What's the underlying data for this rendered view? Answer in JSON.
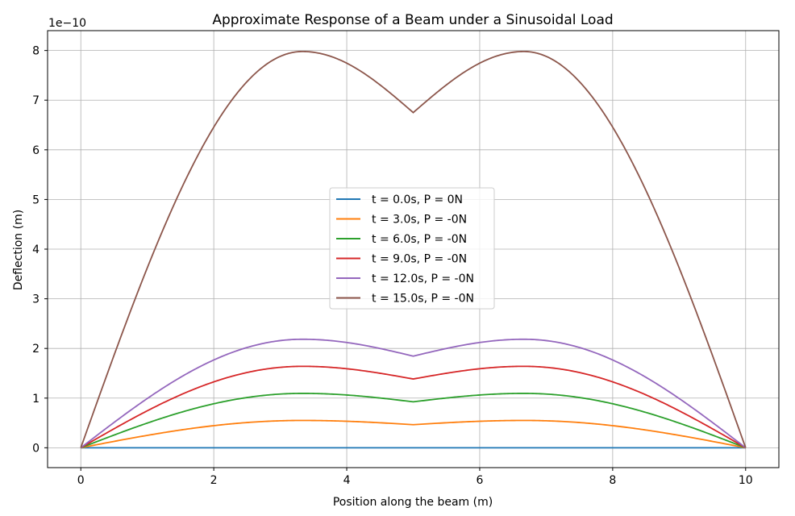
{
  "chart_data": {
    "type": "line",
    "title": "Approximate Response of a Beam under a Sinusoidal Load",
    "xlabel": "Position along the beam (m)",
    "ylabel": "Deflection (m)",
    "y_offset_label": "1e−10",
    "xlim": [
      -0.5,
      10.5
    ],
    "ylim": [
      -0.4,
      8.4
    ],
    "x_ticks": [
      0,
      2,
      4,
      6,
      8,
      10
    ],
    "y_ticks": [
      0,
      1,
      2,
      3,
      4,
      5,
      6,
      7,
      8
    ],
    "grid": true,
    "legend_position": "center",
    "peak_positions": [
      3.333,
      6.667
    ],
    "series": [
      {
        "name": "t = 0.0s, P = 0N",
        "color": "#1f77b4",
        "peak": 0.0,
        "mid": 0.0
      },
      {
        "name": "t = 3.0s, P = -0N",
        "color": "#ff7f0e",
        "peak": 0.55,
        "mid": 0.465
      },
      {
        "name": "t = 6.0s, P = -0N",
        "color": "#2ca02c",
        "peak": 1.095,
        "mid": 0.925
      },
      {
        "name": "t = 9.0s, P = -0N",
        "color": "#d62728",
        "peak": 1.64,
        "mid": 1.385
      },
      {
        "name": "t = 12.0s, P = -0N",
        "color": "#9467bd",
        "peak": 2.185,
        "mid": 1.845
      },
      {
        "name": "t = 15.0s, P = -0N",
        "color": "#8c564b",
        "peak": 7.98,
        "mid": 6.75
      }
    ]
  }
}
